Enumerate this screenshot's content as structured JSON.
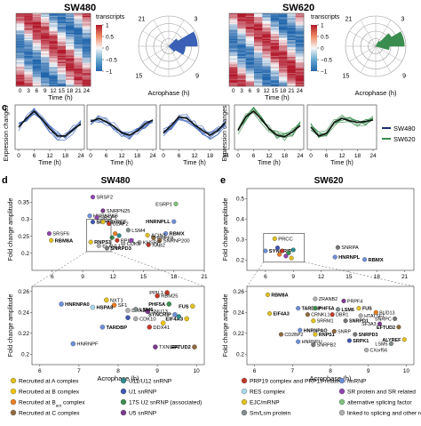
{
  "chart_data": [
    {
      "type": "heatmap",
      "panel": "",
      "title": "SW480",
      "x_tick_labels": [
        "0",
        "3",
        "6",
        "9",
        "12",
        "15",
        "18",
        "21",
        "24"
      ],
      "xlabel": "Time (h)",
      "colorbar": {
        "title": "transcripts",
        "ticks": [
          "1",
          "0.5",
          "0",
          "−0.5",
          "−1"
        ]
      }
    },
    {
      "type": "polar_histogram",
      "title": "",
      "angle_tick_labels": [
        "21",
        "3",
        "9",
        "15"
      ],
      "xlabel": "Acrophase (h)",
      "color": "#3a61b5"
    },
    {
      "type": "heatmap",
      "title": "SW620",
      "x_tick_labels": [
        "0",
        "3",
        "6",
        "9",
        "12",
        "15",
        "18",
        "21",
        "24"
      ],
      "xlabel": "Time (h)",
      "colorbar": {
        "title": "transcripts",
        "ticks": [
          "1",
          "0.5",
          "0",
          "−0.5",
          "−1"
        ]
      }
    },
    {
      "type": "polar_histogram",
      "title": "",
      "angle_tick_labels": [
        "21",
        "3",
        "9",
        "15"
      ],
      "xlabel": "Acrophase (h)",
      "color": "#3a8d4f"
    },
    {
      "type": "line",
      "panel": "c",
      "ylabel": "Expression changes",
      "xlabel": "Time (h)",
      "x_ticks": [
        0,
        6,
        12,
        18,
        24
      ],
      "legend": [
        {
          "name": "SW480",
          "color": "#1c2e6e"
        },
        {
          "name": "SW620",
          "color": "#3a8d4f"
        }
      ],
      "subplots": [
        {
          "color": "#3a61b5",
          "mean": [
            0.0,
            0.55,
            1.0,
            0.5,
            -0.1,
            -0.55,
            -0.55,
            -0.15,
            0.2
          ]
        },
        {
          "color": "#3a61b5",
          "mean": [
            0.35,
            0.55,
            0.35,
            0.05,
            -0.35,
            -0.5,
            -0.25,
            0.2,
            0.45
          ]
        },
        {
          "color": "#3a61b5",
          "mean": [
            -0.35,
            0.1,
            0.65,
            0.55,
            0.15,
            -0.2,
            -0.5,
            -0.2,
            0.3
          ]
        },
        {
          "color": "#3a8d4f",
          "mean": [
            -0.2,
            0.65,
            1.0,
            0.5,
            -0.1,
            -0.5,
            -0.6,
            -0.3,
            0.1
          ]
        },
        {
          "color": "#3a8d4f",
          "mean": [
            0.0,
            -0.55,
            -0.4,
            0.3,
            0.55,
            0.4,
            0.3,
            0.35,
            0.45
          ]
        }
      ]
    },
    {
      "type": "scatter",
      "panel": "d",
      "title": "SW480",
      "xlabel": "",
      "ylabel": "Fold change amplitude",
      "xlim": [
        4,
        21
      ],
      "ylim": [
        0.15,
        0.39
      ],
      "x_ticks": [
        "6",
        "9",
        "12",
        "15",
        "18",
        "21"
      ],
      "y_ticks": [
        "0.2",
        "0.25",
        "0.3",
        "0.35"
      ],
      "points": [
        {
          "label": "SRSF2",
          "x": 10.0,
          "y": 0.365,
          "color": "#8e44ad"
        },
        {
          "label": "SNRPN25",
          "x": 11.0,
          "y": 0.325,
          "color": "#7a3b8c"
        },
        {
          "label": "HNRNPAB",
          "x": 9.7,
          "y": 0.31,
          "color": "#6e8fd8"
        },
        {
          "label": "SRSF1",
          "x": 10.4,
          "y": 0.305,
          "color": "#8e44ad"
        },
        {
          "label": "SRPK1",
          "x": 10.0,
          "y": 0.292,
          "color": "#3f56b0"
        },
        {
          "label": "ALYREF",
          "x": 11.0,
          "y": 0.292,
          "color": "#e0c020"
        },
        {
          "label": "U2AF2",
          "x": 11.6,
          "y": 0.287,
          "color": "#c0392b"
        },
        {
          "label": "LSM4",
          "x": 13.5,
          "y": 0.268,
          "color": "#7f8c8d"
        },
        {
          "label": "SRSF6",
          "x": 5.7,
          "y": 0.258,
          "color": "#8e44ad"
        },
        {
          "label": "RBM8A",
          "x": 5.9,
          "y": 0.238,
          "color": "#e0c020"
        },
        {
          "label": "RNPS1",
          "x": 9.8,
          "y": 0.233,
          "color": "#e0c020"
        },
        {
          "label": "ELAVL1",
          "x": 10.6,
          "y": 0.222,
          "color": "#aeaeae"
        },
        {
          "label": "SNRPD3",
          "x": 11.4,
          "y": 0.215,
          "color": "#777777"
        },
        {
          "label": "ESRP1",
          "x": 18.2,
          "y": 0.345,
          "color": "#7fbf7f"
        },
        {
          "label": "HNRNPLL",
          "x": 18.0,
          "y": 0.293,
          "color": "#6e8fd8"
        },
        {
          "label": "RBMX",
          "x": 17.2,
          "y": 0.258,
          "color": "#6e8fd8"
        },
        {
          "label": "PRPF8",
          "x": 16.0,
          "y": 0.245,
          "color": "#8e6b3d"
        },
        {
          "label": "SNRNP200",
          "x": 16.6,
          "y": 0.238,
          "color": "#8e6b3d"
        },
        {
          "label": "ACIN1",
          "x": 15.4,
          "y": 0.253,
          "color": "#e0c020"
        },
        {
          "label": "XAB2",
          "x": 15.5,
          "y": 0.225,
          "color": "#c0392b"
        },
        {
          "label": "KHSRP",
          "x": 14.6,
          "y": 0.232,
          "color": "#aeaeae"
        },
        {
          "label": "CDK5",
          "x": 13.0,
          "y": 0.228,
          "color": "#aeaeae"
        },
        {
          "label": "PPIL1",
          "x": 12.4,
          "y": 0.238,
          "color": "#c0392b"
        },
        {
          "label": "",
          "x": 11.9,
          "y": 0.246,
          "color": "#3a8d4f"
        },
        {
          "label": "",
          "x": 12.6,
          "y": 0.252,
          "color": "#2c8c8c"
        },
        {
          "label": "",
          "x": 13.8,
          "y": 0.238,
          "color": "#8e44ad"
        },
        {
          "label": "",
          "x": 12.2,
          "y": 0.258,
          "color": "#e67e22"
        }
      ]
    },
    {
      "type": "scatter",
      "panel": "d-zoom",
      "title": "",
      "xlabel": "Acrophase (h)",
      "ylabel": "Fold change amplitude",
      "xlim": [
        5.8,
        10.2
      ],
      "ylim": [
        0.19,
        0.265
      ],
      "x_ticks": [
        "6",
        "7",
        "8",
        "9",
        "10"
      ],
      "y_ticks": [
        "0.2",
        "0.22",
        "0.24",
        "0.26"
      ],
      "points": [
        {
          "label": "PPIL1",
          "x": 9.25,
          "y": 0.259,
          "color": "#c0392b"
        },
        {
          "label": "RBM25",
          "x": 9.0,
          "y": 0.256,
          "color": "#c0392b"
        },
        {
          "label": "NXT1",
          "x": 7.7,
          "y": 0.252,
          "color": "#e0c020"
        },
        {
          "label": "HNRNPA0",
          "x": 6.55,
          "y": 0.248,
          "color": "#6e8fd8"
        },
        {
          "label": "SF1",
          "x": 7.9,
          "y": 0.247,
          "color": "#e67e22"
        },
        {
          "label": "HSPA8",
          "x": 7.35,
          "y": 0.245,
          "color": "#a8d8ea"
        },
        {
          "label": "DHX35",
          "x": 8.25,
          "y": 0.242,
          "color": "#aeaeae"
        },
        {
          "label": "SNU13",
          "x": 8.75,
          "y": 0.241,
          "color": "#7a3b8c"
        },
        {
          "label": "LSM6",
          "x": 8.45,
          "y": 0.243,
          "color": "#7f8c8d"
        },
        {
          "label": "PHF5A",
          "x": 9.3,
          "y": 0.248,
          "color": "#3a8d4f"
        },
        {
          "label": "FUS",
          "x": 9.9,
          "y": 0.246,
          "color": "#e0c020"
        },
        {
          "label": "SYNCRIP",
          "x": 9.45,
          "y": 0.238,
          "color": "#6e8fd8"
        },
        {
          "label": "CDK10",
          "x": 8.45,
          "y": 0.234,
          "color": "#aeaeae"
        },
        {
          "label": "EIF4A3",
          "x": 9.75,
          "y": 0.234,
          "color": "#e0c020"
        },
        {
          "label": "TARDBP",
          "x": 7.6,
          "y": 0.226,
          "color": "#6e8fd8"
        },
        {
          "label": "DDX41",
          "x": 8.8,
          "y": 0.226,
          "color": "#c0392b"
        },
        {
          "label": "HNRNPF",
          "x": 6.85,
          "y": 0.21,
          "color": "#6e8fd8"
        },
        {
          "label": "TXNL4A",
          "x": 8.95,
          "y": 0.207,
          "color": "#7a3b8c"
        },
        {
          "label": "EFTUD2",
          "x": 9.95,
          "y": 0.207,
          "color": "#8e6b3d"
        },
        {
          "label": "",
          "x": 9.55,
          "y": 0.236,
          "color": "#2c8c8c"
        },
        {
          "label": "",
          "x": 9.15,
          "y": 0.23,
          "color": "#f1c40f"
        },
        {
          "label": "",
          "x": 8.25,
          "y": 0.235,
          "color": "#3f56b0"
        }
      ]
    },
    {
      "type": "scatter",
      "panel": "e",
      "title": "SW620",
      "xlabel": "",
      "ylabel": "Fold change amplitude",
      "xlim": [
        4,
        22
      ],
      "ylim": [
        0.15,
        0.55
      ],
      "x_ticks": [
        "6",
        "9",
        "12",
        "15",
        "18",
        "21"
      ],
      "y_ticks": [
        "0.2",
        "0.3",
        "0.4",
        "0.5"
      ],
      "points": [
        {
          "label": "PRCC",
          "x": 7.0,
          "y": 0.305,
          "color": "#e0c020"
        },
        {
          "label": "SYNCRIP",
          "x": 6.0,
          "y": 0.245,
          "color": "#6e8fd8"
        },
        {
          "label": "SNRPA",
          "x": 13.8,
          "y": 0.262,
          "color": "#777777"
        },
        {
          "label": "HNRNPL",
          "x": 13.5,
          "y": 0.215,
          "color": "#6e8fd8"
        },
        {
          "label": "RBMX",
          "x": 16.7,
          "y": 0.203,
          "color": "#6e8fd8"
        },
        {
          "label": "",
          "x": 7.3,
          "y": 0.26,
          "color": "#3f56b0"
        },
        {
          "label": "",
          "x": 7.8,
          "y": 0.245,
          "color": "#c0392b"
        },
        {
          "label": "",
          "x": 8.5,
          "y": 0.235,
          "color": "#3a8d4f"
        },
        {
          "label": "",
          "x": 7.5,
          "y": 0.228,
          "color": "#e67e22"
        },
        {
          "label": "",
          "x": 8.2,
          "y": 0.22,
          "color": "#8e44ad"
        },
        {
          "label": "",
          "x": 9.0,
          "y": 0.25,
          "color": "#2c8c8c"
        },
        {
          "label": "",
          "x": 8.8,
          "y": 0.21,
          "color": "#e0c020"
        }
      ]
    },
    {
      "type": "scatter",
      "panel": "e-zoom",
      "title": "",
      "xlabel": "Acrophase (h)",
      "ylabel": "Fold change amplitude",
      "xlim": [
        5.8,
        10.2
      ],
      "ylim": [
        0.19,
        0.265
      ],
      "x_ticks": [
        "6",
        "7",
        "8",
        "9",
        "10"
      ],
      "y_ticks": [
        "0.2",
        "0.22",
        "0.24",
        "0.26"
      ],
      "points": [
        {
          "label": "RBM8A",
          "x": 6.35,
          "y": 0.257,
          "color": "#e0c020"
        },
        {
          "label": "ZRANB2",
          "x": 7.6,
          "y": 0.253,
          "color": "#aeaeae"
        },
        {
          "label": "PRPF4",
          "x": 8.35,
          "y": 0.251,
          "color": "#7a3b8c"
        },
        {
          "label": "TARDBP",
          "x": 7.15,
          "y": 0.244,
          "color": "#6e8fd8"
        },
        {
          "label": "PHF5A",
          "x": 7.6,
          "y": 0.244,
          "color": "#3a8d4f"
        },
        {
          "label": "LSM6",
          "x": 8.2,
          "y": 0.243,
          "color": "#7f8c8d"
        },
        {
          "label": "FUS",
          "x": 8.75,
          "y": 0.244,
          "color": "#e0c020"
        },
        {
          "label": "EIF4A3",
          "x": 6.4,
          "y": 0.239,
          "color": "#e0c020"
        },
        {
          "label": "CRNKL1",
          "x": 7.4,
          "y": 0.238,
          "color": "#8e6b3d"
        },
        {
          "label": "DBR1",
          "x": 8.05,
          "y": 0.238,
          "color": "#c0392b"
        },
        {
          "label": "HTATSF1",
          "x": 8.8,
          "y": 0.237,
          "color": "#aeaeae"
        },
        {
          "label": "BUD13",
          "x": 9.2,
          "y": 0.24,
          "color": "#e67e22"
        },
        {
          "label": "SRRM1",
          "x": 7.55,
          "y": 0.232,
          "color": "#e0c020"
        },
        {
          "label": "SNRPD1",
          "x": 8.4,
          "y": 0.232,
          "color": "#777777"
        },
        {
          "label": "SNRPC",
          "x": 9.7,
          "y": 0.234,
          "color": "#777777"
        },
        {
          "label": "SF3A3",
          "x": 9.3,
          "y": 0.229,
          "color": "#7a3b8c"
        },
        {
          "label": "EFTUD2",
          "x": 9.8,
          "y": 0.226,
          "color": "#8e6b3d"
        },
        {
          "label": "HNRNPAO",
          "x": 7.2,
          "y": 0.223,
          "color": "#6e8fd8"
        },
        {
          "label": "CD2BP2",
          "x": 6.7,
          "y": 0.219,
          "color": "#8e6b3d"
        },
        {
          "label": "RNPS1",
          "x": 7.6,
          "y": 0.219,
          "color": "#e0c020"
        },
        {
          "label": "SNRP",
          "x": 8.1,
          "y": 0.222,
          "color": "#8e6b3d"
        },
        {
          "label": "SNRPD3",
          "x": 8.65,
          "y": 0.219,
          "color": "#777777"
        },
        {
          "label": "SRPK1",
          "x": 8.5,
          "y": 0.213,
          "color": "#3f56b0"
        },
        {
          "label": "HNRNPU",
          "x": 7.15,
          "y": 0.212,
          "color": "#6e8fd8"
        },
        {
          "label": "SNRPB2",
          "x": 7.55,
          "y": 0.209,
          "color": "#777777"
        },
        {
          "label": "CXorf56",
          "x": 8.95,
          "y": 0.204,
          "color": "#aeaeae"
        },
        {
          "label": "LSM5",
          "x": 9.6,
          "y": 0.21,
          "color": "#7f8c8d"
        },
        {
          "label": "ALYREF",
          "x": 9.95,
          "y": 0.214,
          "color": "#e0c020"
        }
      ]
    }
  ],
  "panel_letters": {
    "c": "c",
    "d": "d",
    "e": "e"
  },
  "legend_bottom": [
    {
      "label": "Recruited at A complex",
      "color": "#e0c020"
    },
    {
      "label": "Recruited at B complex",
      "color": "#f1c40f"
    },
    {
      "label": "Recruited at B",
      "sub": "act",
      "suffix": " complex",
      "color": "#e67e22"
    },
    {
      "label": "Recruited at C complex",
      "color": "#8e6b3d"
    },
    {
      "label": "U11/U12 snRNP",
      "color": "#2c8c8c"
    },
    {
      "label": "U1 snRNP",
      "color": "#3f56b0"
    },
    {
      "label": "17S U2 snRNP (associated)",
      "color": "#3a8d4f"
    },
    {
      "label": "U5 snRNP",
      "color": "#7a3b8c"
    },
    {
      "label": "PRP19 complex and PRP19 related",
      "color": "#c0392b"
    },
    {
      "label": "RES complex",
      "color": "#a8d8ea"
    },
    {
      "label": "EJC/mRNP",
      "color": "#e0c020"
    },
    {
      "label": "Sm/Lsm protein",
      "color": "#7f8c8d"
    },
    {
      "label": "hnRNP",
      "color": "#6e8fd8"
    },
    {
      "label": "SR protein and SR related",
      "color": "#8e44ad"
    },
    {
      "label": "alternative splicing factor",
      "color": "#7fbf7f"
    },
    {
      "label": "linked to splicing and other regulators",
      "color": "#aeaeae"
    }
  ]
}
